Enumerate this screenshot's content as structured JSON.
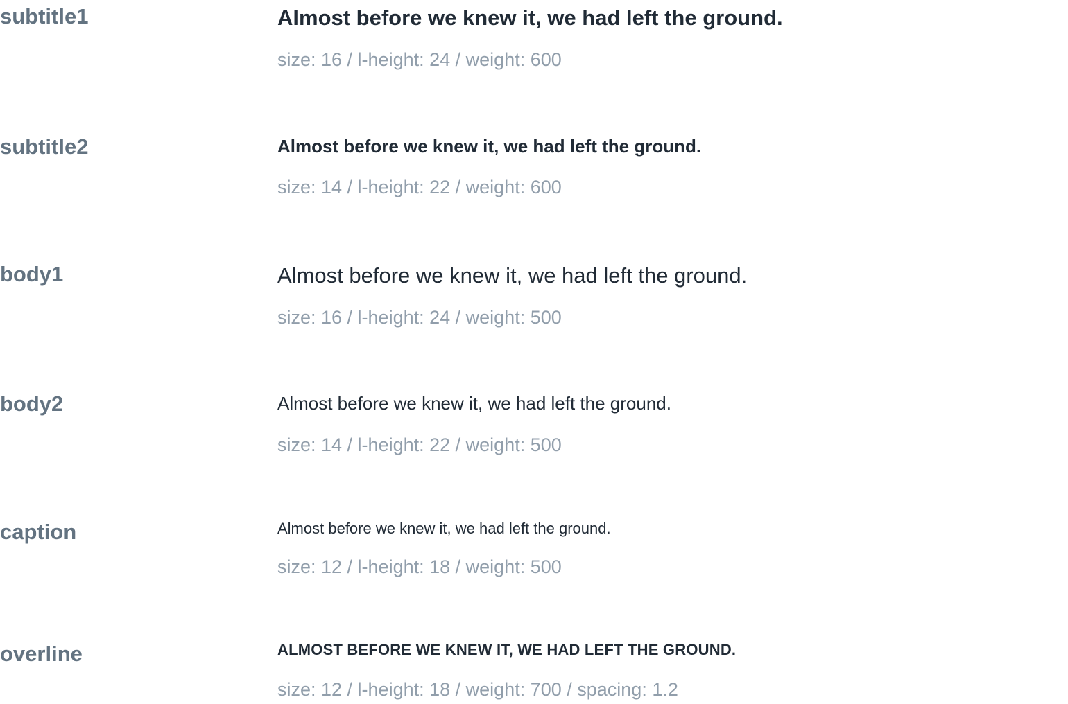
{
  "colors": {
    "name": "#637381",
    "sample": "#212B36",
    "spec": "#919EAB",
    "background": "#ffffff"
  },
  "typography": [
    {
      "name": "subtitle1",
      "sample": "Almost before we knew it, we had left the ground.",
      "spec": "size: 16 / l-height: 24 / weight: 600"
    },
    {
      "name": "subtitle2",
      "sample": "Almost before we knew it, we had left the ground.",
      "spec": "size: 14 / l-height: 22 / weight: 600"
    },
    {
      "name": "body1",
      "sample": "Almost before we knew it, we had left the ground.",
      "spec": "size: 16 / l-height: 24 / weight: 500"
    },
    {
      "name": "body2",
      "sample": "Almost before we knew it, we had left the ground.",
      "spec": "size: 14 / l-height: 22 / weight: 500"
    },
    {
      "name": "caption",
      "sample": "Almost before we knew it, we had left the ground.",
      "spec": "size: 12 / l-height: 18 / weight: 500"
    },
    {
      "name": "overline",
      "sample": "ALMOST BEFORE WE KNEW IT, WE HAD LEFT THE GROUND.",
      "spec": "size: 12 / l-height: 18 / weight: 700 / spacing: 1.2"
    }
  ]
}
